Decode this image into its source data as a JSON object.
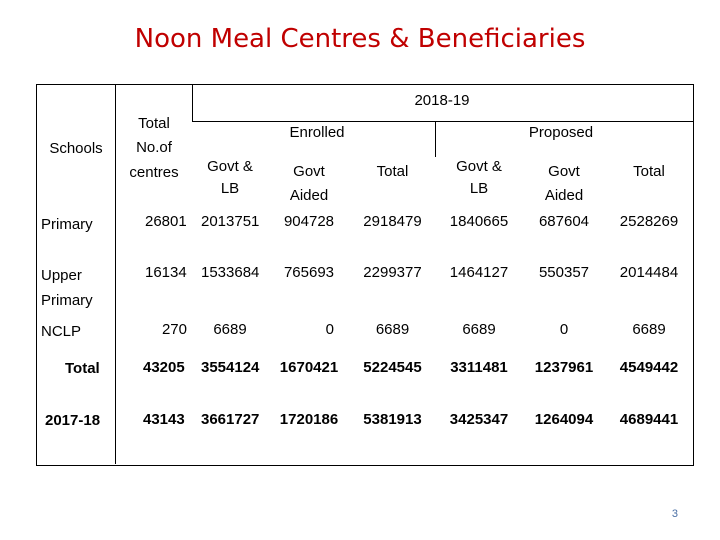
{
  "title": "Noon Meal Centres & Beneficiaries",
  "table": {
    "year_header": "2018-19",
    "schools_header": "Schools",
    "centres_header": [
      "Total",
      "No.of",
      "centres"
    ],
    "enrolled_header": "Enrolled",
    "proposed_header": "Proposed",
    "sub_headers": {
      "govt_lb": [
        "Govt &",
        "LB"
      ],
      "govt_aided": [
        "Govt",
        "Aided"
      ],
      "total": "Total"
    },
    "rows": [
      {
        "label": [
          "Primary"
        ],
        "centres": "26801",
        "values": [
          "2013751",
          "904728",
          "2918479",
          "1840665",
          "687604",
          "2528269"
        ]
      },
      {
        "label": [
          "Upper",
          "Primary"
        ],
        "centres": "16134",
        "values": [
          "1533684",
          "765693",
          "2299377",
          "1464127",
          "550357",
          "2014484"
        ]
      },
      {
        "label": [
          "NCLP"
        ],
        "centres": "270",
        "values": [
          "6689",
          "0",
          "6689",
          "6689",
          "0",
          "6689"
        ]
      },
      {
        "label": [
          "Total"
        ],
        "centres": "43205",
        "values": [
          "3554124",
          "1670421",
          "5224545",
          "3311481",
          "1237961",
          "4549442"
        ]
      },
      {
        "label": [
          "2017-18"
        ],
        "centres": "43143",
        "values": [
          "3661727",
          "1720186",
          "5381913",
          "3425347",
          "1264094",
          "4689441"
        ]
      }
    ]
  },
  "page_number": "3"
}
